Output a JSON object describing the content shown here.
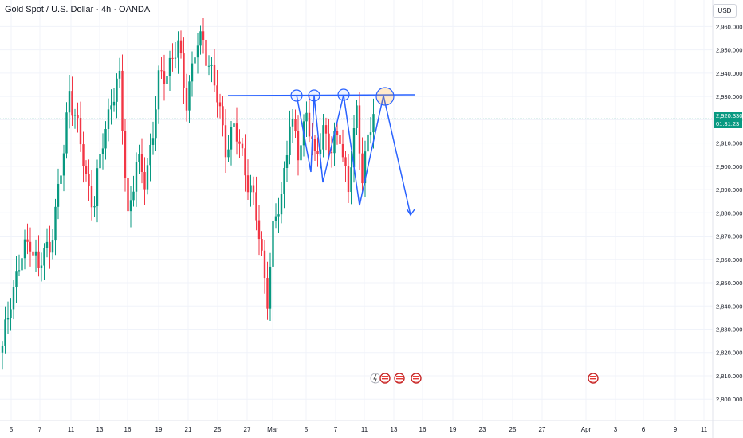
{
  "chart_title": "Gold Spot / U.S. Dollar · 4h · OANDA",
  "currency": "USD",
  "last_price": "2,920.330",
  "countdown": "01:31:23",
  "colors": {
    "up": "#089981",
    "down": "#f23645",
    "drawing": "#2962ff",
    "last_price_line": "#089981",
    "grid": "#f0f3fa",
    "axis_text": "#131722"
  },
  "event_icons": [
    "lightning-event-icon",
    "us-flag-event-icon",
    "us-flag-event-icon",
    "us-flag-event-icon",
    "us-flag-event-icon"
  ],
  "chart_data": {
    "type": "candlestick",
    "y_ticks": [
      "2,960.000",
      "2,950.000",
      "2,940.000",
      "2,930.000",
      "2,920.000",
      "2,910.000",
      "2,900.000",
      "2,890.000",
      "2,880.000",
      "2,870.000",
      "2,860.000",
      "2,850.000",
      "2,840.000",
      "2,830.000",
      "2,820.000",
      "2,810.000",
      "2,800.000"
    ],
    "y_tick_values": [
      2960,
      2950,
      2940,
      2930,
      2920,
      2910,
      2900,
      2890,
      2880,
      2870,
      2860,
      2850,
      2840,
      2830,
      2820,
      2810,
      2800
    ],
    "x_ticks": [
      "5",
      "7",
      "11",
      "13",
      "16",
      "19",
      "21",
      "25",
      "27",
      "Mar",
      "5",
      "7",
      "11",
      "13",
      "16",
      "19",
      "23",
      "25",
      "27",
      "Apr",
      "3",
      "6",
      "9",
      "11"
    ],
    "ylim": [
      2797,
      2968
    ],
    "anchors": [
      [
        0,
        2820
      ],
      [
        3,
        2845
      ],
      [
        7,
        2860
      ],
      [
        10,
        2870
      ],
      [
        13,
        2855
      ],
      [
        17,
        2868
      ],
      [
        19,
        2880
      ],
      [
        22,
        2905
      ],
      [
        24,
        2935
      ],
      [
        27,
        2915
      ],
      [
        30,
        2895
      ],
      [
        33,
        2885
      ],
      [
        36,
        2910
      ],
      [
        39,
        2930
      ],
      [
        42,
        2935
      ],
      [
        45,
        2880
      ],
      [
        48,
        2900
      ],
      [
        51,
        2895
      ],
      [
        54,
        2915
      ],
      [
        56,
        2935
      ],
      [
        60,
        2945
      ],
      [
        63,
        2950
      ],
      [
        66,
        2930
      ],
      [
        69,
        2948
      ],
      [
        72,
        2955
      ],
      [
        75,
        2940
      ],
      [
        77,
        2928
      ],
      [
        80,
        2910
      ],
      [
        83,
        2915
      ],
      [
        86,
        2905
      ],
      [
        89,
        2890
      ],
      [
        92,
        2870
      ],
      [
        95,
        2845
      ],
      [
        97,
        2870
      ],
      [
        100,
        2888
      ],
      [
        103,
        2920
      ],
      [
        106,
        2905
      ],
      [
        109,
        2925
      ],
      [
        112,
        2900
      ],
      [
        115,
        2918
      ],
      [
        118,
        2905
      ],
      [
        121,
        2915
      ],
      [
        124,
        2890
      ],
      [
        127,
        2922
      ],
      [
        129,
        2898
      ],
      [
        131,
        2912
      ],
      [
        133,
        2920
      ]
    ]
  }
}
